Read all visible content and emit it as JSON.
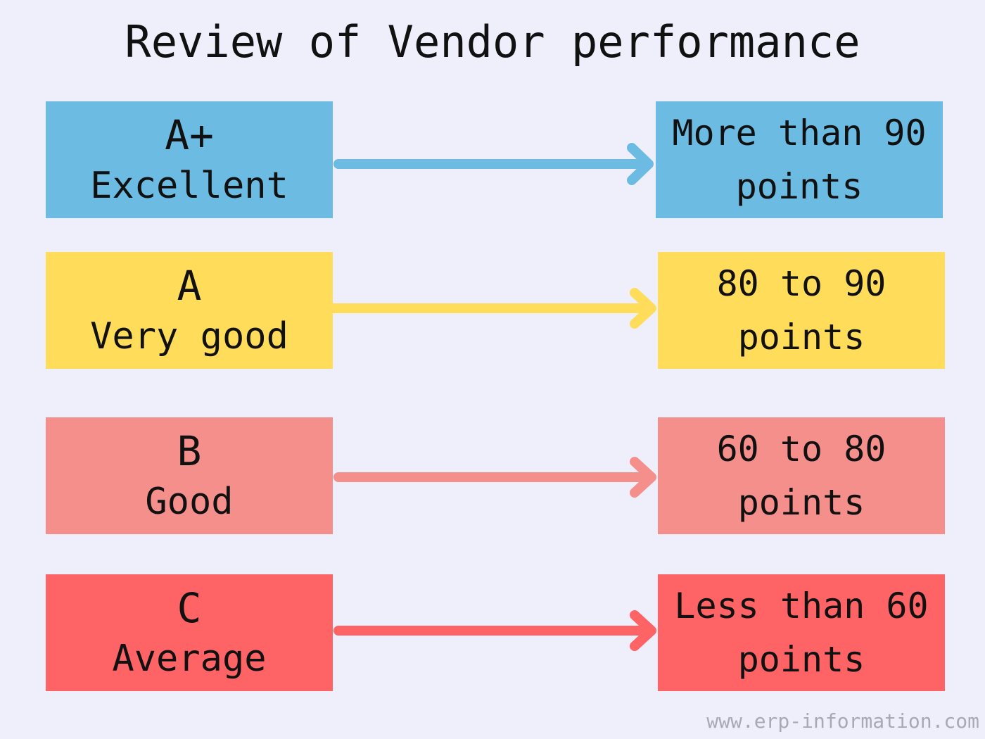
{
  "title": "Review of Vendor performance",
  "colors": {
    "background": "#efeefb",
    "blue": "#6bbbe3",
    "yellow": "#ffdd5a",
    "pink": "#f58f8c",
    "red": "#fe6465"
  },
  "rows": [
    {
      "grade": "A+",
      "label": "Excellent",
      "range_line1": "More than 90",
      "range_line2": "points",
      "color": "#6bbbe3"
    },
    {
      "grade": "A",
      "label": "Very good",
      "range_line1": "80 to 90",
      "range_line2": "points",
      "color": "#ffdd5a"
    },
    {
      "grade": "B",
      "label": "Good",
      "range_line1": "60 to 80",
      "range_line2": "points",
      "color": "#f58f8c"
    },
    {
      "grade": "C",
      "label": "Average",
      "range_line1": "Less than 60",
      "range_line2": "points",
      "color": "#fe6465"
    }
  ],
  "footer": "www.erp-information.com"
}
